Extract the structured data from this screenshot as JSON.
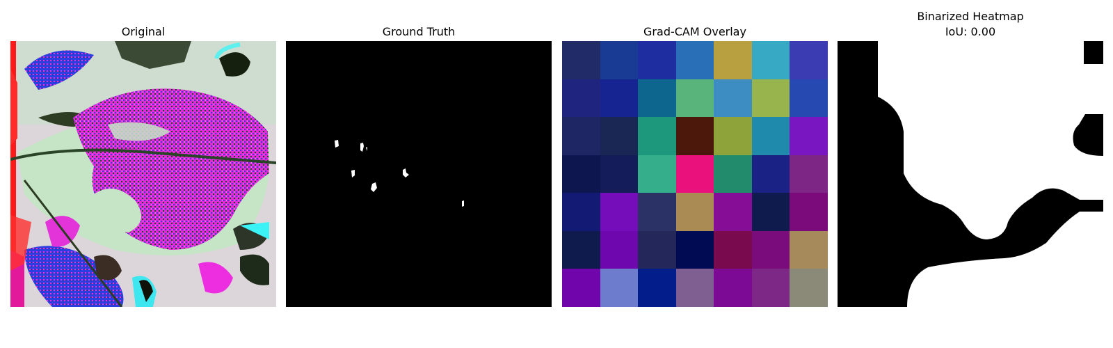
{
  "panels": [
    {
      "title": "Original"
    },
    {
      "title": "Ground Truth"
    },
    {
      "title": "Grad-CAM Overlay"
    },
    {
      "title": "Binarized Heatmap",
      "subtitle": "IoU: 0.00"
    }
  ],
  "gradcam_colors": [
    [
      "#212b68",
      "#1a3b93",
      "#1e2ea1",
      "#296fb7",
      "#b8a040",
      "#37a9c5",
      "#3b3cb1"
    ],
    [
      "#1f257f",
      "#152490",
      "#0c668e",
      "#59b47b",
      "#3d8dc3",
      "#98b54d",
      "#2549b1"
    ],
    [
      "#1e2663",
      "#1a2653",
      "#1d987c",
      "#4c180b",
      "#8ea339",
      "#208aad",
      "#7a15c2"
    ],
    [
      "#0d164f",
      "#141d59",
      "#35ae8c",
      "#ea117c",
      "#228b6b",
      "#1b2286",
      "#7e2686"
    ],
    [
      "#131a74",
      "#750eba",
      "#2a3266",
      "#a98b53",
      "#860d96",
      "#0f1a4d",
      "#7b0a7b"
    ],
    [
      "#101b4d",
      "#6f07ae",
      "#232759",
      "#010b53",
      "#780a4d",
      "#7b0c7b",
      "#a78a5b"
    ],
    [
      "#7105ac",
      "#6d7ccd",
      "#031e8a",
      "#7f5e92",
      "#7d0a94",
      "#7d2786",
      "#8b8978"
    ]
  ]
}
